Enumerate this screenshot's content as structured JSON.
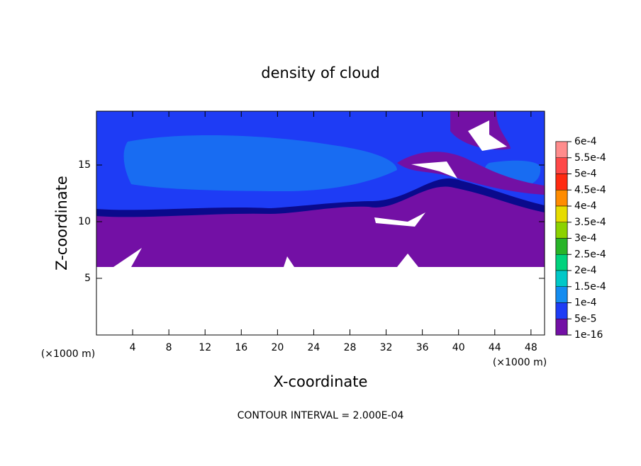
{
  "chart_data": {
    "type": "contour",
    "title": "density of cloud",
    "xlabel": "X-coordinate",
    "ylabel": "Z-coordinate",
    "x_unit_label": "(×1000 m)",
    "y_unit_label": "(×1000 m)",
    "footer": "CONTOUR INTERVAL = 2.000E-04",
    "xlim": [
      0,
      49.5
    ],
    "xticks": [
      4,
      8,
      12,
      16,
      20,
      24,
      28,
      32,
      36,
      40,
      44,
      48
    ],
    "ylim": [
      0,
      19.75
    ],
    "yticks": [
      5,
      10,
      15
    ],
    "colorbar": {
      "levels": [
        {
          "value": 0.0006,
          "label": "6e-4"
        },
        {
          "value": 0.00055,
          "label": "5.5e-4"
        },
        {
          "value": 0.0005,
          "label": "5e-4"
        },
        {
          "value": 0.00045,
          "label": "4.5e-4"
        },
        {
          "value": 0.0004,
          "label": "4e-4"
        },
        {
          "value": 0.00035,
          "label": "3.5e-4"
        },
        {
          "value": 0.0003,
          "label": "3e-4"
        },
        {
          "value": 0.00025,
          "label": "2.5e-4"
        },
        {
          "value": 0.0002,
          "label": "2e-4"
        },
        {
          "value": 0.00015,
          "label": "1.5e-4"
        },
        {
          "value": 0.0001,
          "label": "1e-4"
        },
        {
          "value": 5e-05,
          "label": "5e-5"
        },
        {
          "value": 1e-16,
          "label": "1e-16"
        }
      ],
      "colors": [
        "#ff8c8c",
        "#ff4848",
        "#ff2a10",
        "#ff8c00",
        "#e6dc00",
        "#8cd200",
        "#28b428",
        "#00d27d",
        "#00c8c8",
        "#148cf0",
        "#1e3cf5",
        "#0a0a8c",
        "#7310a5"
      ]
    }
  }
}
